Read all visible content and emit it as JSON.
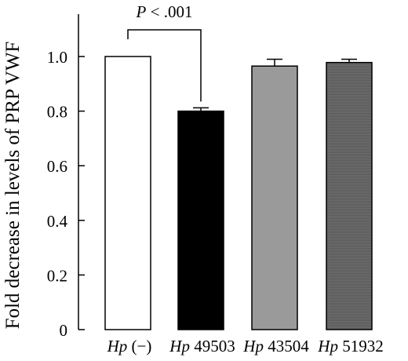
{
  "chart_data": {
    "type": "bar",
    "title": "",
    "ylabel": "Fold decrease in levels of PRP VWF",
    "xlabel": "",
    "ylim": [
      0,
      1.05
    ],
    "yticks": [
      0,
      0.2,
      0.4,
      0.6,
      0.8,
      1.0
    ],
    "ytick_labels": [
      "0",
      "0.2",
      "0.4",
      "0.6",
      "0.8",
      "1.0"
    ],
    "categories": [
      {
        "prefix": "Hp",
        "suffix": " (−)"
      },
      {
        "prefix": "Hp",
        "suffix": " 49503"
      },
      {
        "prefix": "Hp",
        "suffix": " 43504"
      },
      {
        "prefix": "Hp",
        "suffix": " 51932"
      }
    ],
    "values": [
      1.0,
      0.8,
      0.965,
      0.978
    ],
    "errors": [
      0,
      0.012,
      0.025,
      0.012
    ],
    "bar_colors": [
      "#ffffff",
      "#000000",
      "#9a9a9a",
      "#6e6e6e"
    ],
    "grid": false,
    "legend": "none",
    "annotations": [
      {
        "text_italic": "P",
        "text": " < .001",
        "from_index": 0,
        "to_index": 1
      }
    ]
  }
}
